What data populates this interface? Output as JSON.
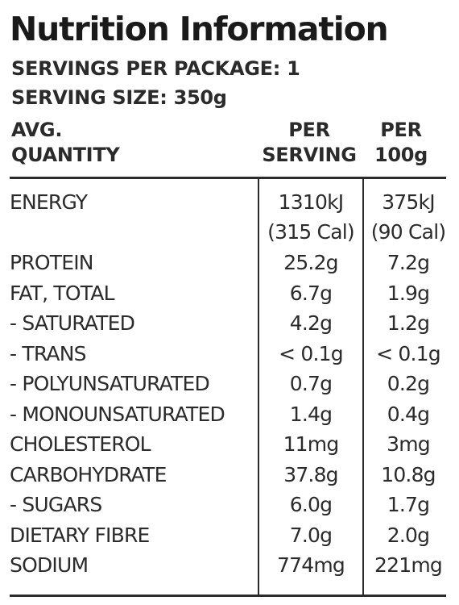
{
  "panel": {
    "title": "Nutrition Information",
    "servings_per_package": "SERVINGS PER PACKAGE: 1",
    "serving_size": "SERVING SIZE: 350g"
  },
  "header": {
    "quantity_line1": "AVG.",
    "quantity_line2": "QUANTITY",
    "per_serving_line1": "PER",
    "per_serving_line2": "SERVING",
    "per_100g_line1": "PER",
    "per_100g_line2": "100g"
  },
  "rows": [
    {
      "name": "ENERGY",
      "per_serving": "1310kJ",
      "per_serving_sub": "(315 Cal)",
      "per_100g": "375kJ",
      "per_100g_sub": "(90 Cal)"
    },
    {
      "name": "PROTEIN",
      "per_serving": "25.2g",
      "per_100g": "7.2g"
    },
    {
      "name": "FAT, TOTAL",
      "per_serving": "6.7g",
      "per_100g": "1.9g"
    },
    {
      "name": "- SATURATED",
      "per_serving": "4.2g",
      "per_100g": "1.2g"
    },
    {
      "name": "- TRANS",
      "per_serving": "< 0.1g",
      "per_100g": "< 0.1g"
    },
    {
      "name": "- POLYUNSATURATED",
      "per_serving": "0.7g",
      "per_100g": "0.2g"
    },
    {
      "name": "- MONOUNSATURATED",
      "per_serving": "1.4g",
      "per_100g": "0.4g"
    },
    {
      "name": "CHOLESTEROL",
      "per_serving": "11mg",
      "per_100g": "3mg"
    },
    {
      "name": "CARBOHYDRATE",
      "per_serving": "37.8g",
      "per_100g": "10.8g"
    },
    {
      "name": "- SUGARS",
      "per_serving": "6.0g",
      "per_100g": "1.7g"
    },
    {
      "name": "DIETARY FIBRE",
      "per_serving": "7.0g",
      "per_100g": "2.0g"
    },
    {
      "name": "SODIUM",
      "per_serving": "774mg",
      "per_100g": "221mg"
    }
  ]
}
